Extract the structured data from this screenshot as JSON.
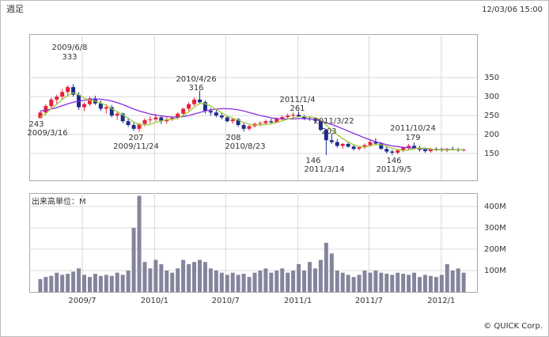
{
  "header": {
    "title": "週足",
    "timestamp": "12/03/06 15:00"
  },
  "footer": "© QUICK Corp.",
  "chart_data": {
    "type": "candlestick",
    "xlim": [
      "2009-02-16",
      "2012-04-01"
    ],
    "xticks": [
      {
        "value": "2009-07-01",
        "label": "2009/7"
      },
      {
        "value": "2010-01-01",
        "label": "2010/1"
      },
      {
        "value": "2010-07-01",
        "label": "2010/7"
      },
      {
        "value": "2011-01-01",
        "label": "2011/1"
      },
      {
        "value": "2011-07-01",
        "label": "2011/7"
      },
      {
        "value": "2012-01-01",
        "label": "2012/1"
      }
    ],
    "ylim": [
      79,
      465
    ],
    "yticks": [
      150,
      200,
      250,
      300,
      350
    ],
    "grid": true,
    "up_color": "#e8203c",
    "down_color": "#1c2a8c",
    "x": [
      "2009-03-16",
      "2009-03-30",
      "2009-04-13",
      "2009-04-27",
      "2009-05-11",
      "2009-05-25",
      "2009-06-08",
      "2009-06-22",
      "2009-07-06",
      "2009-07-20",
      "2009-08-03",
      "2009-08-17",
      "2009-08-31",
      "2009-09-14",
      "2009-09-28",
      "2009-10-12",
      "2009-10-26",
      "2009-11-09",
      "2009-11-23",
      "2009-12-07",
      "2009-12-21",
      "2010-01-04",
      "2010-01-18",
      "2010-02-01",
      "2010-02-15",
      "2010-03-01",
      "2010-03-15",
      "2010-03-29",
      "2010-04-12",
      "2010-04-26",
      "2010-05-10",
      "2010-05-24",
      "2010-06-07",
      "2010-06-21",
      "2010-07-05",
      "2010-07-19",
      "2010-08-02",
      "2010-08-16",
      "2010-08-30",
      "2010-09-13",
      "2010-09-27",
      "2010-10-11",
      "2010-10-25",
      "2010-11-08",
      "2010-11-22",
      "2010-12-06",
      "2010-12-20",
      "2011-01-03",
      "2011-01-17",
      "2011-01-31",
      "2011-02-14",
      "2011-02-28",
      "2011-03-14",
      "2011-03-28",
      "2011-04-11",
      "2011-04-25",
      "2011-05-09",
      "2011-05-23",
      "2011-06-06",
      "2011-06-20",
      "2011-07-04",
      "2011-07-18",
      "2011-08-01",
      "2011-08-15",
      "2011-08-29",
      "2011-09-12",
      "2011-09-26",
      "2011-10-10",
      "2011-10-24",
      "2011-11-07",
      "2011-11-21",
      "2011-12-05",
      "2011-12-19",
      "2012-01-02",
      "2012-01-16",
      "2012-01-30",
      "2012-02-13",
      "2012-02-27"
    ],
    "open": [
      243,
      258,
      275,
      292,
      300,
      312,
      325,
      305,
      272,
      280,
      295,
      282,
      268,
      272,
      250,
      255,
      235,
      225,
      215,
      228,
      238,
      240,
      245,
      235,
      240,
      244,
      255,
      268,
      280,
      292,
      285,
      262,
      258,
      250,
      245,
      235,
      240,
      225,
      215,
      222,
      228,
      230,
      235,
      232,
      242,
      246,
      250,
      252,
      248,
      242,
      240,
      236,
      212,
      185,
      180,
      170,
      175,
      168,
      162,
      166,
      172,
      180,
      176,
      162,
      155,
      152,
      158,
      165,
      170,
      165,
      160,
      156,
      162,
      160,
      158,
      162,
      160,
      158
    ],
    "high": [
      262,
      280,
      298,
      305,
      320,
      330,
      333,
      312,
      285,
      300,
      302,
      290,
      280,
      278,
      262,
      258,
      245,
      232,
      230,
      242,
      248,
      255,
      250,
      245,
      248,
      258,
      270,
      285,
      298,
      316,
      290,
      270,
      265,
      258,
      250,
      245,
      244,
      232,
      225,
      232,
      235,
      240,
      242,
      245,
      250,
      255,
      258,
      261,
      252,
      248,
      246,
      240,
      215,
      203,
      188,
      178,
      180,
      172,
      170,
      176,
      185,
      190,
      180,
      168,
      160,
      162,
      168,
      175,
      179,
      170,
      166,
      165,
      166,
      165,
      164,
      168,
      165,
      163
    ],
    "low": [
      243,
      252,
      268,
      280,
      292,
      300,
      300,
      265,
      262,
      275,
      278,
      262,
      255,
      245,
      238,
      230,
      220,
      210,
      207,
      222,
      230,
      235,
      228,
      228,
      236,
      240,
      250,
      262,
      275,
      280,
      255,
      250,
      245,
      240,
      232,
      228,
      220,
      208,
      210,
      218,
      222,
      225,
      228,
      230,
      236,
      240,
      244,
      245,
      238,
      236,
      232,
      210,
      146,
      175,
      165,
      162,
      165,
      158,
      158,
      162,
      168,
      172,
      160,
      150,
      146,
      148,
      154,
      160,
      162,
      155,
      152,
      152,
      156,
      155,
      154,
      158,
      155,
      155
    ],
    "close": [
      258,
      275,
      292,
      300,
      312,
      325,
      305,
      272,
      280,
      295,
      282,
      268,
      272,
      250,
      255,
      235,
      225,
      215,
      228,
      238,
      240,
      245,
      235,
      240,
      244,
      255,
      268,
      280,
      292,
      285,
      262,
      258,
      250,
      245,
      235,
      240,
      225,
      215,
      222,
      228,
      230,
      235,
      232,
      242,
      246,
      250,
      252,
      248,
      242,
      240,
      236,
      212,
      185,
      180,
      170,
      175,
      168,
      162,
      166,
      172,
      180,
      176,
      162,
      155,
      152,
      158,
      165,
      170,
      165,
      160,
      156,
      162,
      160,
      158,
      162,
      160,
      158,
      160
    ],
    "moving_averages": [
      {
        "color": "#8a2be2",
        "values": [
          262,
          264,
          267,
          271,
          276,
          281,
          285,
          288,
          290,
          293,
          294,
          293,
          291,
          288,
          284,
          279,
          273,
          267,
          262,
          258,
          254,
          251,
          249,
          247,
          246,
          246,
          247,
          250,
          254,
          258,
          262,
          265,
          267,
          268,
          268,
          267,
          265,
          262,
          258,
          254,
          250,
          247,
          244,
          242,
          241,
          241,
          241,
          242,
          242,
          241,
          240,
          236,
          231,
          226,
          221,
          215,
          209,
          203,
          197,
          191,
          186,
          181,
          177,
          173,
          170,
          168,
          166,
          165,
          164,
          163,
          162,
          161,
          160,
          160,
          160,
          160,
          160,
          160
        ]
      },
      {
        "color": "#9acd32",
        "values": [
          245,
          255,
          268,
          280,
          292,
          303,
          310,
          305,
          296,
          290,
          288,
          283,
          277,
          268,
          260,
          252,
          243,
          233,
          226,
          225,
          227,
          232,
          236,
          239,
          240,
          243,
          250,
          260,
          272,
          282,
          281,
          275,
          266,
          257,
          248,
          243,
          238,
          232,
          227,
          225,
          225,
          226,
          228,
          232,
          236,
          240,
          244,
          247,
          247,
          246,
          244,
          238,
          225,
          212,
          200,
          189,
          180,
          173,
          168,
          167,
          170,
          173,
          173,
          169,
          164,
          160,
          158,
          159,
          162,
          164,
          164,
          162,
          160,
          159,
          159,
          160,
          160,
          160
        ]
      }
    ],
    "volume_label": "出来高単位：M",
    "volume_color": "#84849c",
    "volume": [
      60,
      70,
      75,
      90,
      80,
      85,
      95,
      110,
      80,
      70,
      85,
      75,
      80,
      75,
      90,
      80,
      100,
      300,
      450,
      140,
      110,
      150,
      130,
      100,
      90,
      110,
      150,
      130,
      140,
      150,
      140,
      110,
      100,
      90,
      80,
      90,
      80,
      85,
      70,
      90,
      100,
      110,
      90,
      100,
      110,
      90,
      100,
      130,
      100,
      140,
      110,
      150,
      230,
      180,
      100,
      90,
      80,
      70,
      80,
      100,
      90,
      100,
      90,
      85,
      80,
      90,
      85,
      80,
      90,
      70,
      80,
      75,
      70,
      80,
      130,
      100,
      110,
      90
    ],
    "volume_ylim": [
      0,
      463
    ],
    "volume_yticks": [
      {
        "value": 100,
        "label": "100M"
      },
      {
        "value": 200,
        "label": "200M"
      },
      {
        "value": 300,
        "label": "300M"
      },
      {
        "value": 400,
        "label": "400M"
      }
    ],
    "annotations": [
      "2009/6/8",
      "333",
      "243",
      "2009/3/16",
      "207",
      "2009/11/24",
      "2010/4/26",
      "316",
      "208",
      "2010/8/23",
      "2011/1/4",
      "261",
      "2011/3/22",
      "203",
      "146",
      "2011/3/14",
      "2011/10/24",
      "179",
      "146",
      "2011/9/5"
    ]
  }
}
